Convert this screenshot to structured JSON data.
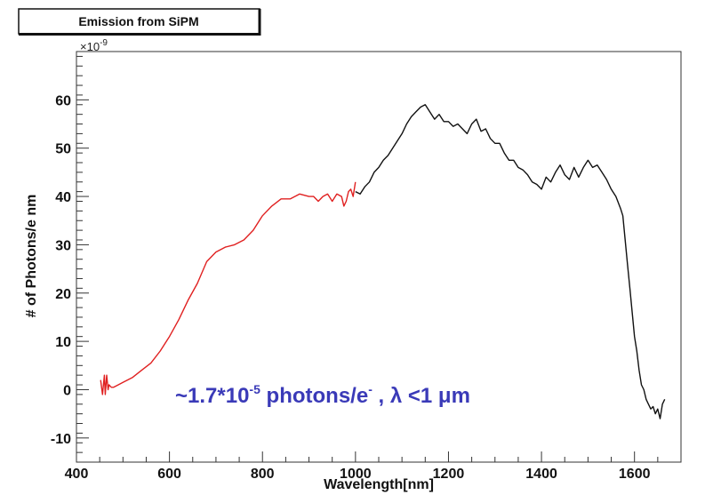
{
  "chart_data": {
    "type": "line",
    "title": "Emission from SiPM",
    "xlabel": "Wavelength[nm]",
    "ylabel": "# of Photons/e nm",
    "y_multiplier": "×10",
    "y_multiplier_exp": "-9",
    "xlim": [
      400,
      1700
    ],
    "ylim": [
      -15,
      70
    ],
    "x_ticks": [
      400,
      600,
      800,
      1000,
      1200,
      1400,
      1600
    ],
    "y_ticks": [
      -10,
      0,
      10,
      20,
      30,
      40,
      50,
      60
    ],
    "grid": false,
    "legend": "none",
    "series": [
      {
        "color": "#e02020",
        "x": [
          452,
          456,
          460,
          462,
          465,
          468,
          470,
          475,
          480,
          490,
          500,
          520,
          540,
          560,
          580,
          600,
          620,
          640,
          660,
          680,
          700,
          720,
          740,
          760,
          780,
          800,
          820,
          840,
          860,
          880,
          900,
          910,
          920,
          930,
          940,
          950,
          960,
          970,
          975,
          980,
          985,
          990,
          995,
          1000
        ],
        "y": [
          2,
          -1,
          3,
          -1,
          3,
          0,
          1,
          0.5,
          0.5,
          1,
          1.5,
          2.5,
          4,
          5.5,
          8,
          11,
          14.5,
          18.5,
          22,
          26.5,
          28.5,
          29.5,
          30,
          31,
          33,
          36,
          38,
          39.5,
          39.5,
          40.5,
          40,
          40,
          39,
          40,
          40.5,
          39,
          40.5,
          40,
          38,
          39,
          41,
          41.5,
          40,
          43
        ]
      },
      {
        "color": "#111111",
        "x": [
          1000,
          1010,
          1020,
          1030,
          1040,
          1050,
          1060,
          1070,
          1080,
          1090,
          1100,
          1110,
          1120,
          1130,
          1140,
          1150,
          1160,
          1170,
          1180,
          1190,
          1200,
          1210,
          1220,
          1230,
          1240,
          1250,
          1260,
          1270,
          1280,
          1290,
          1300,
          1310,
          1320,
          1330,
          1340,
          1350,
          1360,
          1370,
          1380,
          1390,
          1400,
          1410,
          1420,
          1430,
          1440,
          1450,
          1460,
          1470,
          1480,
          1490,
          1500,
          1510,
          1520,
          1530,
          1540,
          1550,
          1560,
          1570,
          1575,
          1580,
          1585,
          1590,
          1595,
          1600,
          1605,
          1610,
          1615,
          1620,
          1625,
          1630,
          1635,
          1640,
          1645,
          1650,
          1655,
          1660,
          1665
        ],
        "y": [
          41,
          40.5,
          42,
          43,
          45,
          46,
          47.5,
          48.5,
          50,
          51.5,
          53,
          55,
          56.5,
          57.5,
          58.5,
          59,
          57.5,
          56,
          57,
          55.5,
          55.5,
          54.5,
          55,
          54,
          53,
          55,
          56,
          53.5,
          54,
          52,
          51,
          51,
          49,
          47.5,
          47.5,
          46,
          45.5,
          44.5,
          43,
          42.5,
          41.5,
          44,
          43,
          45,
          46.5,
          44.5,
          43.5,
          46,
          44,
          46,
          47.5,
          46,
          46.5,
          45,
          43.5,
          41.5,
          40,
          37.5,
          36,
          31,
          26,
          21,
          16,
          11,
          8,
          4,
          1,
          0,
          -2,
          -3,
          -4,
          -3.5,
          -5,
          -4,
          -6,
          -3,
          -2
        ]
      }
    ],
    "annotation": {
      "prefix": "~1.7*10",
      "sup1": "-5",
      "middle": " photons/e",
      "sup2": "-",
      "suffix": " , λ <1 μm"
    }
  }
}
